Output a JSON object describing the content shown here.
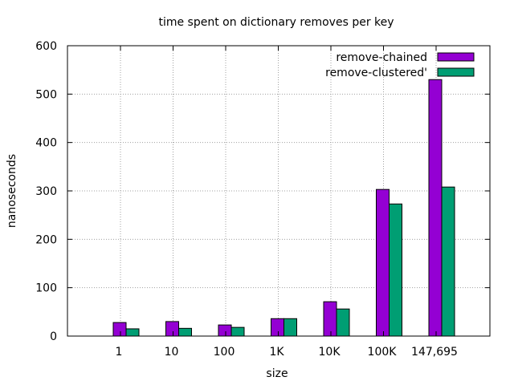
{
  "chart_data": {
    "type": "bar",
    "title": "time spent on dictionary removes per key",
    "xlabel": "size",
    "ylabel": "nanoseconds",
    "categories": [
      "1",
      "10",
      "100",
      "1K",
      "10K",
      "100K",
      "147,695"
    ],
    "ylim": [
      0,
      600
    ],
    "yticks": [
      0,
      100,
      200,
      300,
      400,
      500,
      600
    ],
    "grid": true,
    "legend_position": "top-right",
    "series": [
      {
        "name": "remove-chained",
        "color": "#9400d3",
        "values": [
          28,
          30,
          23,
          36,
          71,
          303,
          530
        ]
      },
      {
        "name": "remove-clustered'",
        "color": "#009e73",
        "values": [
          15,
          16,
          18,
          36,
          56,
          273,
          308
        ]
      }
    ]
  }
}
